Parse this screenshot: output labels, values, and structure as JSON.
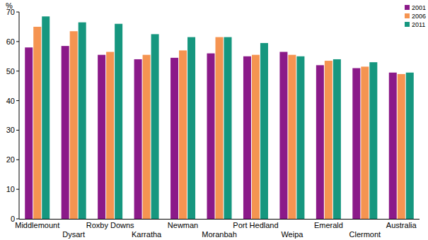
{
  "chart_data": {
    "type": "bar",
    "y_label": "%",
    "categories": [
      "Middlemount",
      "Dysart",
      "Roxby Downs",
      "Karratha",
      "Newman",
      "Moranbah",
      "Port Hedland",
      "Weipa",
      "Emerald",
      "Clermont",
      "Australia"
    ],
    "series": [
      {
        "name": "2001",
        "color": "#8b1a89",
        "values": [
          58,
          58.5,
          55.5,
          54,
          54.5,
          56,
          55,
          56.5,
          52,
          51,
          49.5
        ]
      },
      {
        "name": "2006",
        "color": "#f59451",
        "values": [
          65,
          63.5,
          56.5,
          55.5,
          57,
          61.5,
          55.5,
          55.5,
          53.5,
          51.5,
          49
        ]
      },
      {
        "name": "2011",
        "color": "#16977f",
        "values": [
          68.5,
          66.5,
          66,
          62.5,
          61.5,
          61.5,
          59.5,
          55,
          54,
          53,
          49.5
        ]
      }
    ],
    "ylim": [
      0,
      70
    ],
    "yticks": [
      0,
      10,
      20,
      30,
      40,
      50,
      60,
      70
    ],
    "grid": false,
    "legend": "top-right"
  }
}
